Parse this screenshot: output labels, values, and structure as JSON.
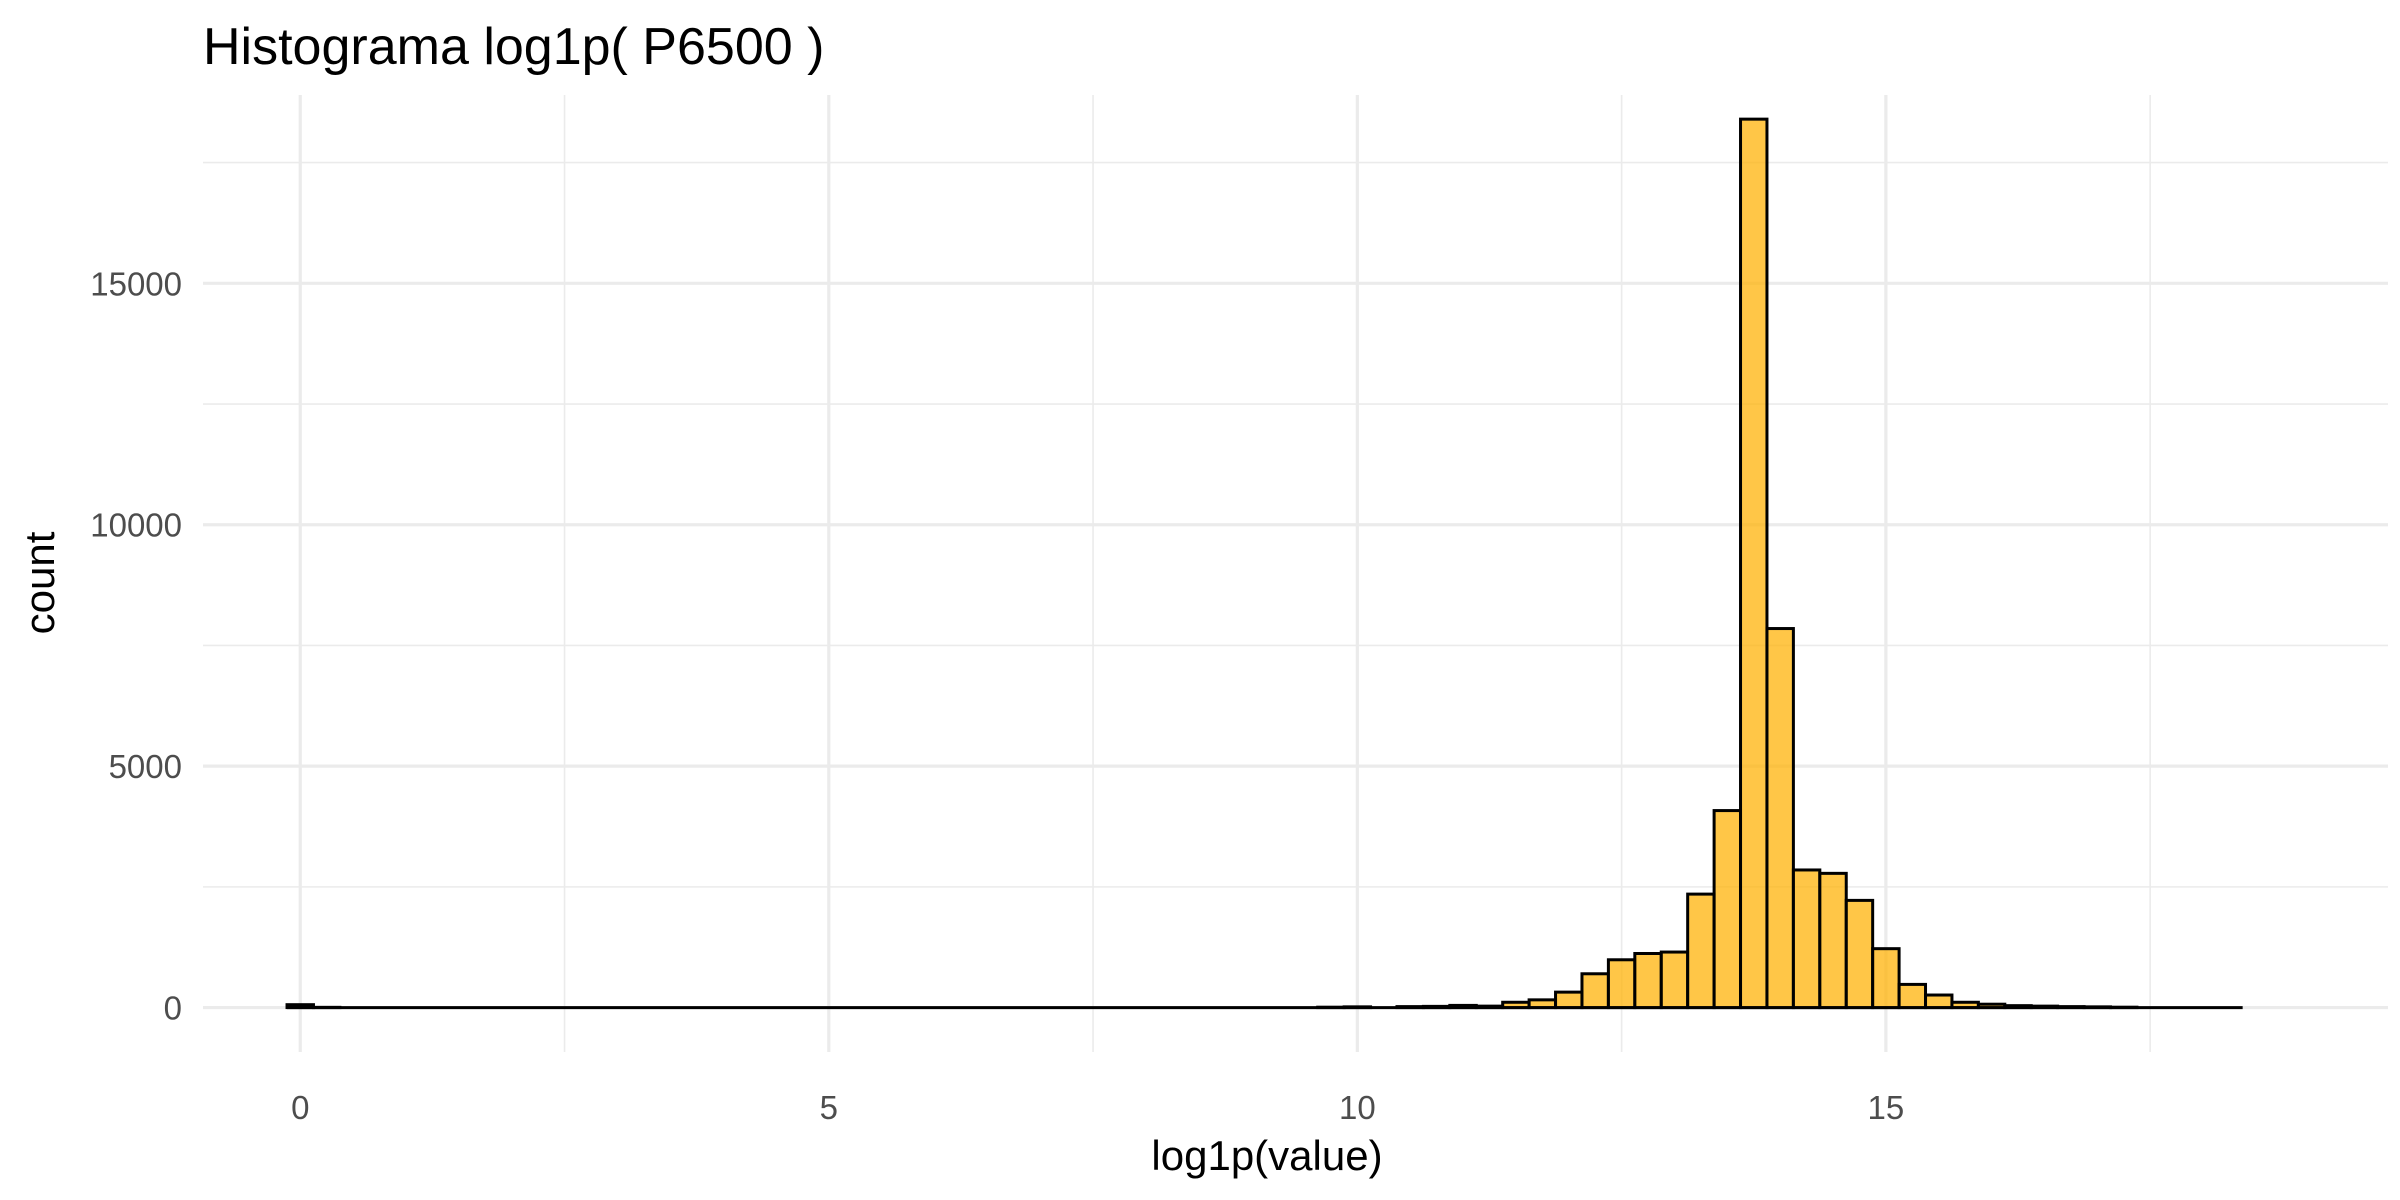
{
  "chart_data": {
    "type": "bar",
    "title": "Histograma log1p( P6500 )",
    "xlabel": "log1p(value)",
    "ylabel": "count",
    "xlim": [
      -0.92,
      19.75
    ],
    "ylim": [
      -920,
      18900
    ],
    "x_ticks": [
      0,
      5,
      10,
      15
    ],
    "x_tick_labels": [
      "0",
      "5",
      "10",
      "15"
    ],
    "y_ticks": [
      0,
      5000,
      10000,
      15000
    ],
    "y_tick_labels": [
      "0",
      "5000",
      "10000",
      "15000"
    ],
    "x_minor_ticks": [
      2.5,
      7.5,
      12.5,
      17.5
    ],
    "y_minor_ticks": [
      2500,
      7500,
      12500,
      17500
    ],
    "grid": true,
    "legend": "none",
    "bin_width": 0.25,
    "bar_fill": "#FFB000",
    "bar_fill_opacity": 0.72,
    "bar_outline": "#000000",
    "bins": [
      {
        "x": 0.0,
        "count": 60
      },
      {
        "x": 0.25,
        "count": 5
      },
      {
        "x": 9.75,
        "count": 8
      },
      {
        "x": 10.0,
        "count": 15
      },
      {
        "x": 10.5,
        "count": 20
      },
      {
        "x": 10.75,
        "count": 25
      },
      {
        "x": 11.0,
        "count": 45
      },
      {
        "x": 11.25,
        "count": 30
      },
      {
        "x": 11.5,
        "count": 110
      },
      {
        "x": 11.75,
        "count": 160
      },
      {
        "x": 12.0,
        "count": 320
      },
      {
        "x": 12.25,
        "count": 700
      },
      {
        "x": 12.5,
        "count": 990
      },
      {
        "x": 12.75,
        "count": 1120
      },
      {
        "x": 13.0,
        "count": 1150
      },
      {
        "x": 13.25,
        "count": 2350
      },
      {
        "x": 13.5,
        "count": 4080
      },
      {
        "x": 13.75,
        "count": 18400
      },
      {
        "x": 14.0,
        "count": 7850
      },
      {
        "x": 14.25,
        "count": 2850
      },
      {
        "x": 14.5,
        "count": 2780
      },
      {
        "x": 14.75,
        "count": 2220
      },
      {
        "x": 15.0,
        "count": 1220
      },
      {
        "x": 15.25,
        "count": 480
      },
      {
        "x": 15.5,
        "count": 260
      },
      {
        "x": 15.75,
        "count": 110
      },
      {
        "x": 16.0,
        "count": 70
      },
      {
        "x": 16.25,
        "count": 40
      },
      {
        "x": 16.5,
        "count": 30
      },
      {
        "x": 16.75,
        "count": 20
      },
      {
        "x": 17.0,
        "count": 15
      },
      {
        "x": 17.25,
        "count": 8
      }
    ],
    "bin_range": [
      -0.125,
      18.375
    ]
  }
}
